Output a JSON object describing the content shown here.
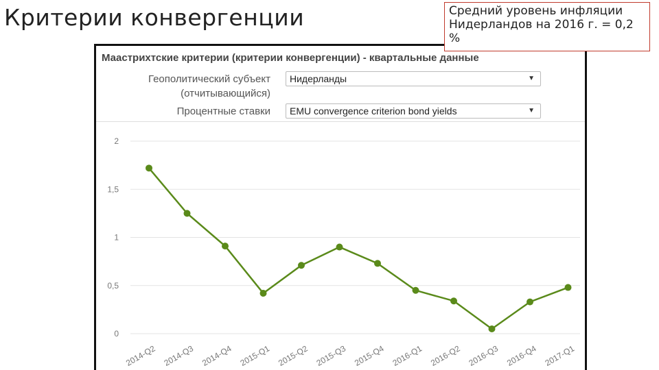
{
  "slide": {
    "title": "Критерии конвергенции",
    "note": "Средний уровень инфляции Нидерландов на 2016 г. = 0,2 %"
  },
  "panel": {
    "title": "Маастрихтские критерии (критерии конвергенции) - квартальные данные",
    "filters": [
      {
        "label_line1": "Геополитический субъект",
        "label_line2": "(отчитывающийся)",
        "value": "Нидерланды"
      },
      {
        "label_line1": "Процентные ставки",
        "label_line2": "",
        "value": "EMU convergence criterion bond yields"
      }
    ]
  },
  "colors": {
    "series": "#5a8a1a",
    "grid": "#e3e3e3",
    "note_border": "#c0392b"
  },
  "chart_data": {
    "type": "line",
    "categories": [
      "2014-Q2",
      "2014-Q3",
      "2014-Q4",
      "2015-Q1",
      "2015-Q2",
      "2015-Q3",
      "2015-Q4",
      "2016-Q1",
      "2016-Q2",
      "2016-Q3",
      "2016-Q4",
      "2017-Q1"
    ],
    "series": [
      {
        "values": [
          1.72,
          1.25,
          0.91,
          0.42,
          0.71,
          0.9,
          0.73,
          0.45,
          0.34,
          0.05,
          0.33,
          0.48
        ]
      }
    ],
    "yticks": [
      "0",
      "0,5",
      "1",
      "1,5",
      "2"
    ],
    "ylim": [
      0,
      2
    ],
    "grid": true
  }
}
